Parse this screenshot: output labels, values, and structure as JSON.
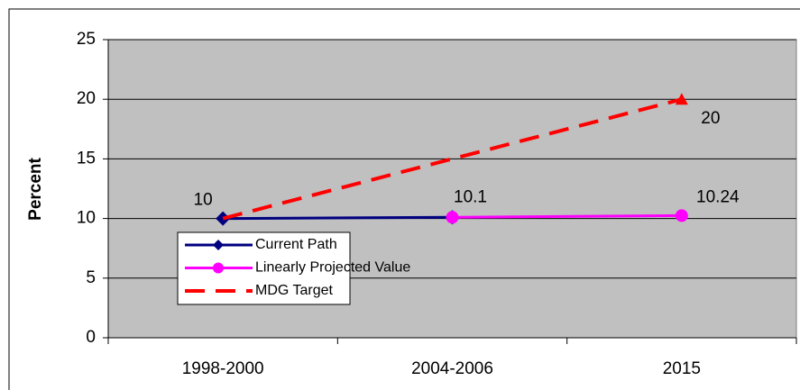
{
  "chart_data": {
    "type": "line",
    "y_label": "Percent",
    "categories": [
      "1998-2000",
      "2004-2006",
      "2015"
    ],
    "ylim": [
      0,
      25
    ],
    "yticks": [
      0,
      5,
      10,
      15,
      20,
      25
    ],
    "grid": true,
    "background": "#c0c0c0",
    "series": [
      {
        "name": "Current Path",
        "color": "#000080",
        "marker": "diamond",
        "dash": false,
        "values": [
          10,
          10.1,
          null
        ],
        "label_points": [
          0,
          1
        ]
      },
      {
        "name": "Linearly Projected Value",
        "color": "#ff00ff",
        "marker": "circle",
        "dash": false,
        "values": [
          null,
          10.1,
          10.24
        ],
        "label_points": [
          2
        ]
      },
      {
        "name": "MDG Target",
        "color": "#ff0000",
        "marker": "triangle",
        "dash": true,
        "values": [
          10,
          15,
          20
        ],
        "label_points": [
          2
        ]
      }
    ]
  }
}
